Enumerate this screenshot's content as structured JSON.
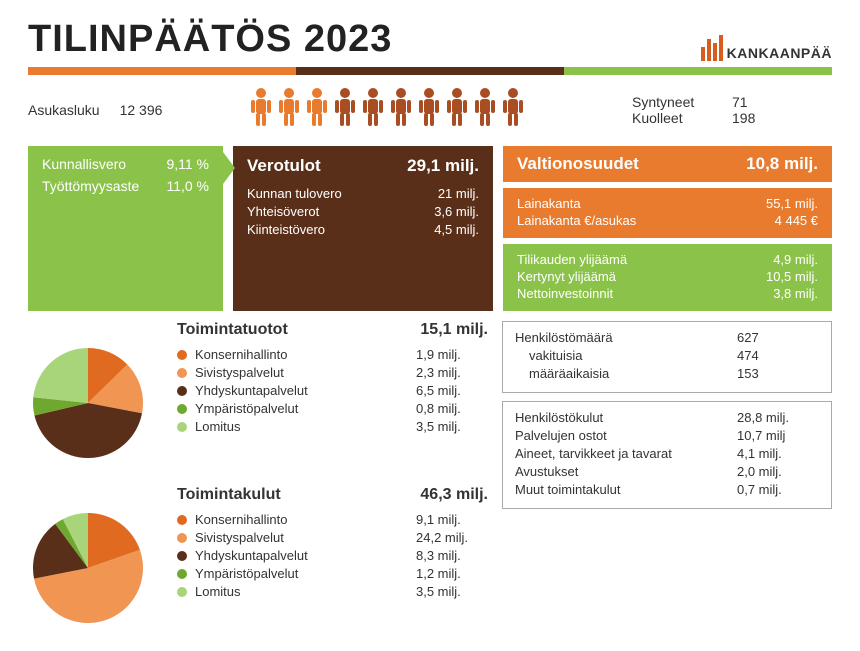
{
  "title": "TILINPÄÄTÖS 2023",
  "logo_text": "KANKAANPÄÄ",
  "accent_colors": [
    "#e87b2e",
    "#5a2f1a",
    "#8bc34a"
  ],
  "population": {
    "label": "Asukasluku",
    "value": "12 396"
  },
  "people_icons": {
    "count": 10,
    "colors": [
      "#e87b2e",
      "#e87b2e",
      "#e87b2e",
      "#a84e22",
      "#a84e22",
      "#a84e22",
      "#a84e22",
      "#a84e22",
      "#a84e22",
      "#a84e22"
    ]
  },
  "births": {
    "label": "Syntyneet",
    "value": "71"
  },
  "deaths": {
    "label": "Kuolleet",
    "value": "198"
  },
  "green_rates": {
    "bg": "#8bc34a",
    "rows": [
      {
        "label": "Kunnallisvero",
        "value": "9,11 %"
      },
      {
        "label": "Työttömyysaste",
        "value": "11,0 %"
      }
    ]
  },
  "tax_income": {
    "bg": "#5a2f1a",
    "title": "Verotulot",
    "total": "29,1 milj.",
    "rows": [
      {
        "label": "Kunnan tulovero",
        "value": "21 milj."
      },
      {
        "label": "Yhteisöverot",
        "value": "3,6 milj."
      },
      {
        "label": "Kiinteistövero",
        "value": "4,5 milj."
      }
    ]
  },
  "state_share": {
    "bg": "#e87b2e",
    "title": "Valtionosuudet",
    "value": "10,8 milj."
  },
  "loans": {
    "bg": "#e87b2e",
    "rows": [
      {
        "label": "Lainakanta",
        "value": "55,1 milj."
      },
      {
        "label": "Lainakanta €/asukas",
        "value": "4 445 €"
      }
    ]
  },
  "surplus": {
    "bg": "#8bc34a",
    "rows": [
      {
        "label": "Tilikauden ylijäämä",
        "value": "4,9 milj."
      },
      {
        "label": "Kertynyt ylijäämä",
        "value": "10,5 milj."
      },
      {
        "label": "Nettoinvestoinnit",
        "value": "3,8 milj."
      }
    ]
  },
  "revenues": {
    "title": "Toimintatuotot",
    "total": "15,1 milj.",
    "items": [
      {
        "label": "Konsernihallinto",
        "value": "1,9 milj.",
        "num": 1.9,
        "color": "#e06a1f"
      },
      {
        "label": "Sivistyspalvelut",
        "value": "2,3 milj.",
        "num": 2.3,
        "color": "#f09552"
      },
      {
        "label": "Yhdyskuntapalvelut",
        "value": "6,5 milj.",
        "num": 6.5,
        "color": "#5a2f1a"
      },
      {
        "label": "Ympäristöpalvelut",
        "value": "0,8 milj.",
        "num": 0.8,
        "color": "#6fa82e"
      },
      {
        "label": "Lomitus",
        "value": "3,5 milj.",
        "num": 3.5,
        "color": "#a8d47a"
      }
    ]
  },
  "expenses": {
    "title": "Toimintakulut",
    "total": "46,3 milj.",
    "items": [
      {
        "label": "Konsernihallinto",
        "value": "9,1 milj.",
        "num": 9.1,
        "color": "#e06a1f"
      },
      {
        "label": "Sivistyspalvelut",
        "value": "24,2 milj.",
        "num": 24.2,
        "color": "#f09552"
      },
      {
        "label": "Yhdyskuntapalvelut",
        "value": "8,3 milj.",
        "num": 8.3,
        "color": "#5a2f1a"
      },
      {
        "label": "Ympäristöpalvelut",
        "value": "1,2 milj.",
        "num": 1.2,
        "color": "#6fa82e"
      },
      {
        "label": "Lomitus",
        "value": "3,5 milj.",
        "num": 3.5,
        "color": "#a8d47a"
      }
    ]
  },
  "staff": {
    "rows": [
      {
        "label": "Henkilöstömäärä",
        "value": "627",
        "indent": false
      },
      {
        "label": "vakituisia",
        "value": "474",
        "indent": true
      },
      {
        "label": "määräaikaisia",
        "value": "153",
        "indent": true
      }
    ]
  },
  "cost_breakdown": {
    "rows": [
      {
        "label": "Henkilöstökulut",
        "value": "28,8 milj."
      },
      {
        "label": "Palvelujen ostot",
        "value": "10,7 milj"
      },
      {
        "label": "Aineet, tarvikkeet ja tavarat",
        "value": "4,1 milj."
      },
      {
        "label": "Avustukset",
        "value": "2,0 milj."
      },
      {
        "label": "Muut toimintakulut",
        "value": "0,7 milj."
      }
    ]
  }
}
